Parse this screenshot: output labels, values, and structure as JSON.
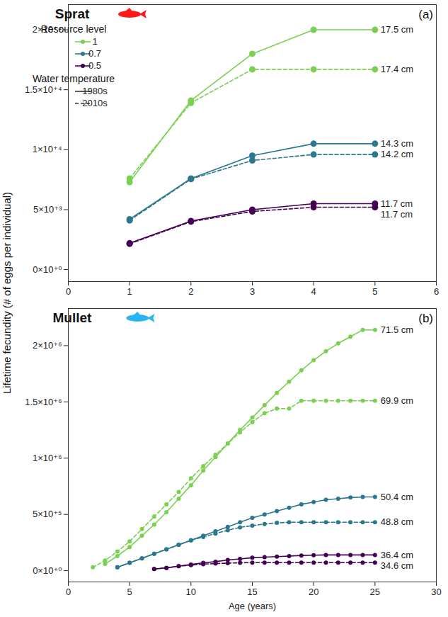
{
  "chart_data": [
    {
      "type": "line",
      "title": "Sprat",
      "panel_label": "(a)",
      "y_label": "Lifetime fecundity (# of eggs per individual)",
      "x": [
        1,
        2,
        3,
        4,
        5
      ],
      "xlim": [
        0,
        6
      ],
      "xticks": [
        0,
        1,
        2,
        3,
        4,
        5,
        6
      ],
      "ylim": [
        -1000,
        22100
      ],
      "yticks": [
        {
          "value": 0,
          "label": "0×10⁺⁰"
        },
        {
          "value": 5000,
          "label": "5×10⁺³"
        },
        {
          "value": 10000,
          "label": "1×10⁺⁴"
        },
        {
          "value": 15000,
          "label": "1.5×10⁺⁴"
        },
        {
          "value": 20000,
          "label": "2×10⁺⁴"
        }
      ],
      "grid": false,
      "legend": "top-left",
      "legend_groups": [
        {
          "title": "Resource level",
          "entries": [
            {
              "label": "1",
              "color": "#7ad151"
            },
            {
              "label": "0.7",
              "color": "#2a788e"
            },
            {
              "label": "0.5",
              "color": "#440154"
            }
          ]
        },
        {
          "title": "Water temperature",
          "entries": [
            {
              "label": "1980s",
              "line_style": "solid"
            },
            {
              "label": "2010s",
              "line_style": "dashed"
            }
          ]
        }
      ],
      "series": [
        {
          "resource": "1",
          "temperature": "1980s",
          "color": "#7ad151",
          "line_style": "solid",
          "marker": "circle",
          "end_label": "17.5 cm",
          "values": [
            7300,
            14100,
            18000,
            20000,
            20000
          ]
        },
        {
          "resource": "1",
          "temperature": "2010s",
          "color": "#7ad151",
          "line_style": "dashed",
          "marker": "circle",
          "end_label": "17.4 cm",
          "values": [
            7600,
            13900,
            16700,
            16700,
            16700
          ]
        },
        {
          "resource": "0.7",
          "temperature": "1980s",
          "color": "#2a788e",
          "line_style": "solid",
          "marker": "circle",
          "end_label": "14.3 cm",
          "values": [
            4200,
            7600,
            9500,
            10500,
            10500
          ]
        },
        {
          "resource": "0.7",
          "temperature": "2010s",
          "color": "#2a788e",
          "line_style": "dashed",
          "marker": "circle",
          "end_label": "14.2 cm",
          "values": [
            4100,
            7550,
            9100,
            9600,
            9600
          ]
        },
        {
          "resource": "0.5",
          "temperature": "1980s",
          "color": "#440154",
          "line_style": "solid",
          "marker": "circle",
          "end_label": "11.7 cm",
          "values": [
            2200,
            4050,
            5000,
            5500,
            5500
          ]
        },
        {
          "resource": "0.5",
          "temperature": "2010s",
          "color": "#440154",
          "line_style": "dashed",
          "marker": "circle",
          "end_label": "11.7 cm",
          "values": [
            2150,
            4000,
            4850,
            5200,
            5200
          ]
        }
      ]
    },
    {
      "type": "line",
      "title": "Mullet",
      "panel_label": "(b)",
      "x_label": "Age (years)",
      "x": [
        2,
        3,
        4,
        5,
        6,
        7,
        8,
        9,
        10,
        11,
        12,
        13,
        14,
        15,
        16,
        17,
        18,
        19,
        20,
        21,
        22,
        23,
        24,
        25
      ],
      "xlim": [
        0,
        30
      ],
      "xticks": [
        0,
        5,
        10,
        15,
        20,
        25,
        30
      ],
      "ylim": [
        -100000,
        2330000
      ],
      "yticks": [
        {
          "value": 0,
          "label": "0×10⁺⁰"
        },
        {
          "value": 500000,
          "label": "5×10⁺⁵"
        },
        {
          "value": 1000000,
          "label": "1×10⁺⁶"
        },
        {
          "value": 1500000,
          "label": "1.5×10⁺⁶"
        },
        {
          "value": 2000000,
          "label": "2×10⁺⁶"
        }
      ],
      "grid": false,
      "series": [
        {
          "resource": "1",
          "temperature": "1980s",
          "color": "#7ad151",
          "line_style": "solid",
          "marker": "circle",
          "end_label": "71.5 cm",
          "values": [
            null,
            60000,
            130000,
            210000,
            310000,
            410000,
            520000,
            640000,
            760000,
            890000,
            1010000,
            1130000,
            1250000,
            1360000,
            1470000,
            1580000,
            1680000,
            1780000,
            1870000,
            1950000,
            2020000,
            2080000,
            2140000,
            2140000
          ]
        },
        {
          "resource": "1",
          "temperature": "2010s",
          "color": "#7ad151",
          "line_style": "dashed",
          "marker": "circle",
          "end_label": "69.9 cm",
          "values": [
            30000,
            90000,
            170000,
            260000,
            370000,
            480000,
            590000,
            700000,
            820000,
            930000,
            1030000,
            1130000,
            1230000,
            1320000,
            1400000,
            1440000,
            1440000,
            1510000,
            1510000,
            1510000,
            1510000,
            1510000,
            1510000,
            1510000
          ]
        },
        {
          "resource": "0.7",
          "temperature": "1980s",
          "color": "#2a788e",
          "line_style": "solid",
          "marker": "circle",
          "end_label": "50.4 cm",
          "values": [
            null,
            null,
            30000,
            70000,
            110000,
            150000,
            190000,
            230000,
            270000,
            310000,
            350000,
            390000,
            430000,
            470000,
            500000,
            530000,
            560000,
            590000,
            610000,
            630000,
            640000,
            650000,
            655000,
            655000
          ]
        },
        {
          "resource": "0.7",
          "temperature": "2010s",
          "color": "#2a788e",
          "line_style": "dashed",
          "marker": "circle",
          "end_label": "48.8 cm",
          "values": [
            null,
            null,
            30000,
            70000,
            110000,
            150000,
            190000,
            230000,
            270000,
            300000,
            330000,
            360000,
            385000,
            400000,
            415000,
            425000,
            430000,
            430000,
            430000,
            430000,
            430000,
            430000,
            430000,
            430000
          ]
        },
        {
          "resource": "0.5",
          "temperature": "1980s",
          "color": "#440154",
          "line_style": "solid",
          "marker": "circle",
          "end_label": "36.4 cm",
          "values": [
            null,
            null,
            null,
            null,
            null,
            15000,
            25000,
            40000,
            55000,
            70000,
            80000,
            95000,
            105000,
            115000,
            120000,
            125000,
            130000,
            135000,
            138000,
            140000,
            140000,
            140000,
            140000,
            140000
          ]
        },
        {
          "resource": "0.5",
          "temperature": "2010s",
          "color": "#440154",
          "line_style": "dashed",
          "marker": "circle",
          "end_label": "34.6 cm",
          "values": [
            null,
            null,
            null,
            null,
            null,
            15000,
            25000,
            40000,
            50000,
            58000,
            63000,
            67000,
            70000,
            72000,
            72000,
            72000,
            72000,
            72000,
            72000,
            72000,
            72000,
            72000,
            72000,
            72000
          ]
        }
      ]
    }
  ]
}
